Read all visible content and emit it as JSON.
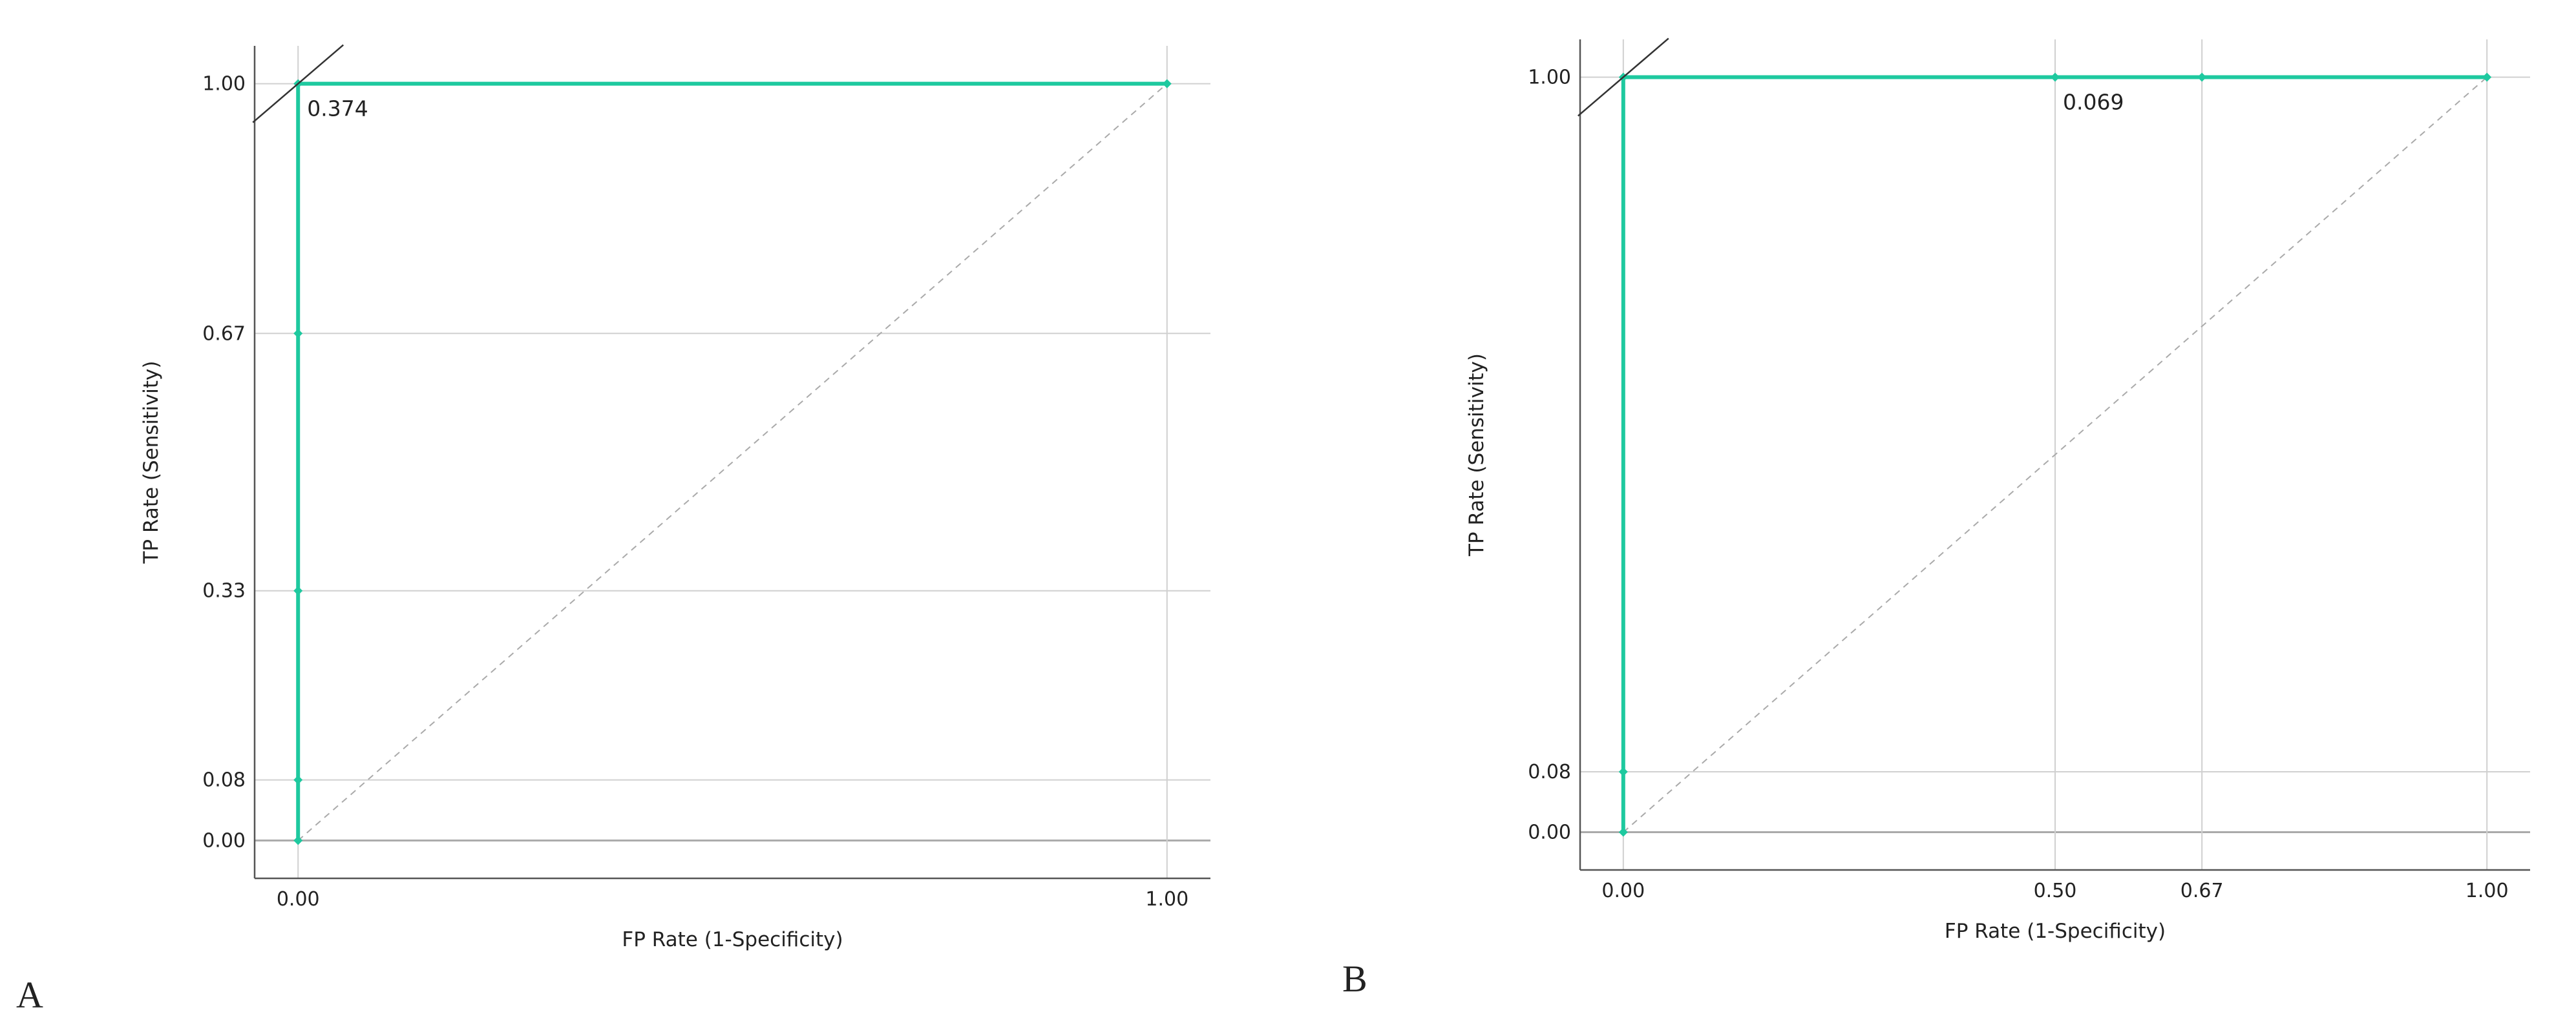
{
  "chart_data": [
    {
      "type": "line",
      "panel_label": "A",
      "x_label": "FP Rate (1-Specificity)",
      "y_label": "TP Rate (Sensitivity)",
      "x": [
        0,
        0,
        0,
        0,
        0,
        1
      ],
      "values": [
        0,
        0.08,
        0.33,
        0.67,
        1,
        1
      ],
      "color": "#1ec99f",
      "annotations": [
        "0.374"
      ],
      "reference_line": true,
      "grid": true,
      "xlim": [
        -0.05,
        1.05
      ],
      "ylim": [
        -0.05,
        1.05
      ],
      "xticks": [
        {
          "value": 0,
          "label": "0.00"
        },
        {
          "value": 1,
          "label": "1.00"
        }
      ],
      "yticks": [
        {
          "value": 0,
          "label": "0.00"
        },
        0.08,
        0.33,
        0.67,
        {
          "value": 1,
          "label": "1.00"
        }
      ]
    },
    {
      "type": "line",
      "panel_label": "B",
      "x_label": "FP Rate (1-Specificity)",
      "y_label": "TP Rate (Sensitivity)",
      "x": [
        0,
        0,
        0,
        0.5,
        0.67,
        1
      ],
      "values": [
        0,
        0.08,
        1,
        1,
        1,
        1
      ],
      "color": "#1ec99f",
      "annotations": [
        "0.069"
      ],
      "reference_line": true,
      "grid": true,
      "xlim": [
        -0.05,
        1.05
      ],
      "ylim": [
        -0.05,
        1.05
      ],
      "xticks": [
        {
          "value": 0,
          "label": "0.00"
        },
        {
          "value": 0.5,
          "label": "0.50"
        },
        0.67,
        {
          "value": 1,
          "label": "1.00"
        }
      ],
      "yticks": [
        {
          "value": 0,
          "label": "0.00"
        },
        0.08,
        {
          "value": 1,
          "label": "1.00"
        }
      ]
    }
  ]
}
